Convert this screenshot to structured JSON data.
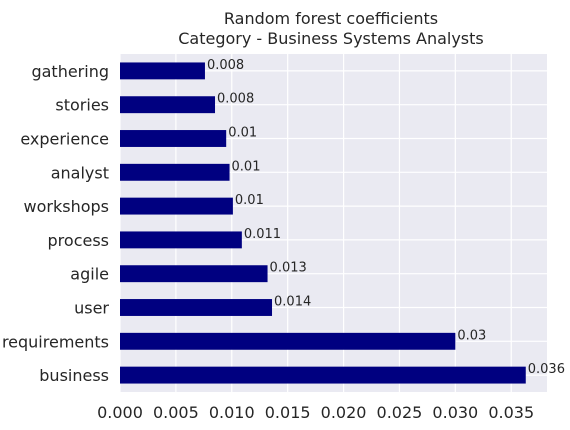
{
  "chart_data": {
    "type": "bar",
    "orientation": "horizontal",
    "title": "Random forest coefficients",
    "subtitle": "Category - Business Systems Analysts",
    "categories": [
      "gathering",
      "stories",
      "experience",
      "analyst",
      "workshops",
      "process",
      "agile",
      "user",
      "requirements",
      "business"
    ],
    "values": [
      0.0076,
      0.0085,
      0.0095,
      0.0098,
      0.0101,
      0.0109,
      0.0132,
      0.0136,
      0.03,
      0.0363
    ],
    "data_labels": [
      "0.008",
      "0.008",
      "0.01",
      "0.01",
      "0.01",
      "0.011",
      "0.013",
      "0.014",
      "0.03",
      "0.036"
    ],
    "xticks": [
      "0.000",
      "0.005",
      "0.010",
      "0.015",
      "0.020",
      "0.025",
      "0.030",
      "0.035"
    ],
    "xtick_values": [
      0,
      0.005,
      0.01,
      0.015,
      0.02,
      0.025,
      0.03,
      0.035
    ],
    "xlim": [
      0,
      0.0382
    ],
    "grid": true,
    "bar_color": "#000080",
    "plot_background": "#eaeaf2",
    "grid_color": "#ffffff",
    "text_color": "#262626"
  }
}
